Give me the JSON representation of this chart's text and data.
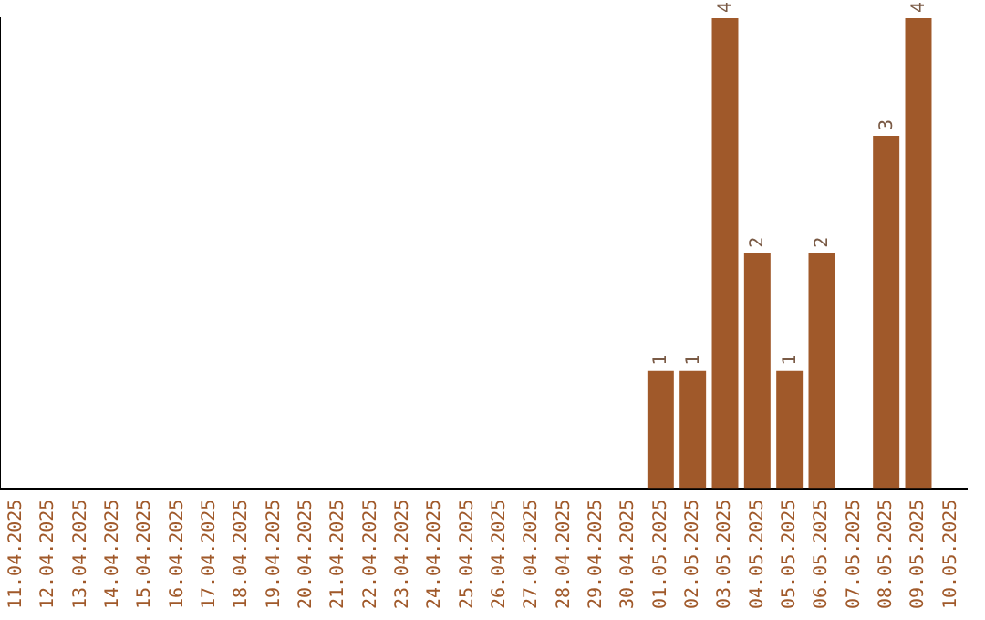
{
  "chart_data": {
    "type": "bar",
    "categories": [
      "11.04.2025",
      "12.04.2025",
      "13.04.2025",
      "14.04.2025",
      "15.04.2025",
      "16.04.2025",
      "17.04.2025",
      "18.04.2025",
      "19.04.2025",
      "20.04.2025",
      "21.04.2025",
      "22.04.2025",
      "23.04.2025",
      "24.04.2025",
      "25.04.2025",
      "26.04.2025",
      "27.04.2025",
      "28.04.2025",
      "29.04.2025",
      "30.04.2025",
      "01.05.2025",
      "02.05.2025",
      "03.05.2025",
      "04.05.2025",
      "05.05.2025",
      "06.05.2025",
      "07.05.2025",
      "08.05.2025",
      "09.05.2025",
      "10.05.2025"
    ],
    "values": [
      null,
      null,
      null,
      null,
      null,
      null,
      null,
      null,
      null,
      null,
      null,
      null,
      null,
      null,
      null,
      null,
      null,
      null,
      null,
      null,
      1,
      1,
      4,
      2,
      1,
      2,
      null,
      3,
      4,
      null
    ],
    "color": "#a0592a",
    "data_labels": true,
    "grid": false,
    "legend": false
  }
}
